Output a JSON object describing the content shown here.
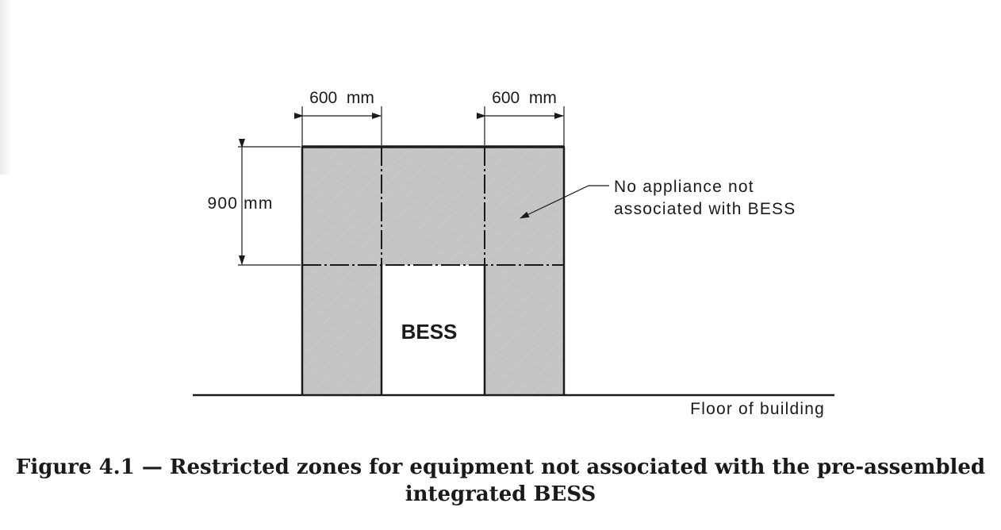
{
  "diagram": {
    "labels": {
      "width_left": "600  mm",
      "width_right": "600  mm",
      "height": "900 mm",
      "center": "BESS",
      "note_line1": "No appliance not",
      "note_line2": "associated with BESS",
      "floor": "Floor of building"
    },
    "colors": {
      "zone_fill": "#c4c4c4",
      "outline": "#1a1a1a"
    }
  },
  "caption": {
    "line1": "Figure 4.1 — Restricted zones for equipment not associated with the pre-assembled",
    "line2": "integrated BESS"
  }
}
